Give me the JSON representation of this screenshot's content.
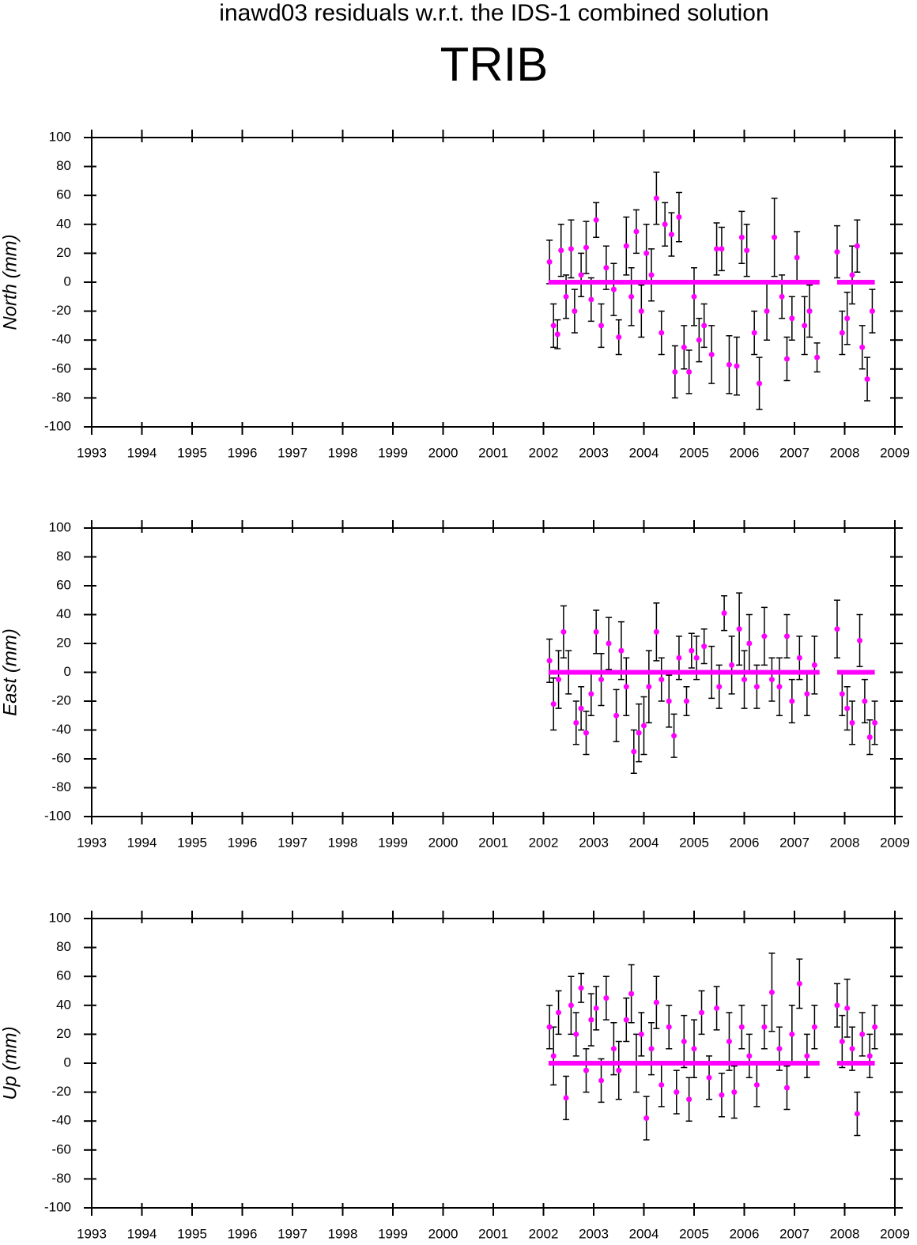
{
  "title": "inawd03 residuals w.r.t. the IDS-1 combined solution",
  "station": "TRIB",
  "chart_data": [
    {
      "type": "scatter",
      "y_label": "North (mm)",
      "color": "#ff00ff",
      "error_color": "#000000",
      "x": [
        2002.12,
        2002.2,
        2002.28,
        2002.35,
        2002.45,
        2002.55,
        2002.62,
        2002.75,
        2002.85,
        2002.95,
        2003.05,
        2003.15,
        2003.25,
        2003.4,
        2003.5,
        2003.65,
        2003.75,
        2003.85,
        2003.95,
        2004.05,
        2004.15,
        2004.25,
        2004.35,
        2004.42,
        2004.55,
        2004.62,
        2004.7,
        2004.8,
        2004.9,
        2005.0,
        2005.1,
        2005.2,
        2005.35,
        2005.45,
        2005.55,
        2005.7,
        2005.85,
        2005.95,
        2006.05,
        2006.2,
        2006.3,
        2006.45,
        2006.6,
        2006.75,
        2006.85,
        2006.95,
        2007.05,
        2007.2,
        2007.3,
        2007.45,
        2007.85,
        2007.95,
        2008.05,
        2008.15,
        2008.25,
        2008.35,
        2008.45,
        2008.55
      ],
      "values": [
        14,
        -30,
        -36,
        22,
        -10,
        23,
        -20,
        5,
        24,
        -12,
        43,
        -30,
        10,
        -5,
        -38,
        25,
        -10,
        35,
        -20,
        20,
        5,
        58,
        -35,
        40,
        33,
        -62,
        45,
        -45,
        -62,
        -10,
        -40,
        -30,
        -50,
        23,
        23,
        -57,
        -58,
        31,
        22,
        -35,
        -70,
        -20,
        31,
        -10,
        -53,
        -25,
        17,
        -30,
        -20,
        -52,
        21,
        -35,
        -25,
        5,
        25,
        -45,
        -67,
        -20
      ],
      "errors": [
        15,
        15,
        10,
        18,
        15,
        20,
        15,
        15,
        18,
        15,
        12,
        15,
        15,
        18,
        12,
        20,
        20,
        15,
        18,
        20,
        18,
        18,
        15,
        15,
        15,
        18,
        17,
        15,
        15,
        20,
        15,
        15,
        20,
        18,
        15,
        20,
        20,
        18,
        18,
        15,
        18,
        20,
        27,
        15,
        15,
        15,
        18,
        20,
        18,
        10,
        18,
        15,
        18,
        20,
        18,
        15,
        15,
        15
      ],
      "fit": {
        "x": [
          2002.1,
          2007.5,
          2007.6,
          2007.85,
          2008.6
        ],
        "values": [
          0,
          0,
          null,
          0,
          0
        ]
      },
      "xlim": [
        1993,
        2009
      ],
      "xticks": [
        1993,
        1994,
        1995,
        1996,
        1997,
        1998,
        1999,
        2000,
        2001,
        2002,
        2003,
        2004,
        2005,
        2006,
        2007,
        2008,
        2009
      ],
      "ylim": [
        -100,
        100
      ],
      "yticks": [
        -100,
        -80,
        -60,
        -40,
        -20,
        0,
        20,
        40,
        60,
        80,
        100
      ]
    },
    {
      "type": "scatter",
      "y_label": "East (mm)",
      "color": "#ff00ff",
      "error_color": "#000000",
      "x": [
        2002.12,
        2002.2,
        2002.3,
        2002.4,
        2002.5,
        2002.65,
        2002.75,
        2002.85,
        2002.95,
        2003.05,
        2003.15,
        2003.3,
        2003.45,
        2003.55,
        2003.65,
        2003.8,
        2003.9,
        2004.0,
        2004.1,
        2004.25,
        2004.35,
        2004.5,
        2004.6,
        2004.7,
        2004.85,
        2004.95,
        2005.05,
        2005.2,
        2005.35,
        2005.5,
        2005.6,
        2005.75,
        2005.9,
        2006.0,
        2006.1,
        2006.25,
        2006.4,
        2006.55,
        2006.7,
        2006.85,
        2006.95,
        2007.1,
        2007.25,
        2007.4,
        2007.85,
        2007.95,
        2008.05,
        2008.15,
        2008.3,
        2008.4,
        2008.5,
        2008.6
      ],
      "values": [
        8,
        -22,
        -5,
        28,
        0,
        -35,
        -25,
        -42,
        -15,
        28,
        -5,
        20,
        -30,
        15,
        -10,
        -55,
        -42,
        -37,
        -10,
        28,
        -5,
        -20,
        -44,
        10,
        -20,
        15,
        10,
        18,
        0,
        -10,
        41,
        5,
        30,
        -5,
        20,
        -10,
        25,
        -5,
        -10,
        25,
        -20,
        10,
        -15,
        5,
        30,
        -15,
        -25,
        -35,
        22,
        -20,
        -45,
        -35
      ],
      "errors": [
        15,
        18,
        20,
        18,
        15,
        15,
        15,
        15,
        15,
        15,
        18,
        18,
        18,
        20,
        20,
        15,
        20,
        20,
        25,
        20,
        15,
        18,
        15,
        15,
        10,
        12,
        15,
        12,
        18,
        15,
        12,
        20,
        25,
        20,
        20,
        15,
        20,
        15,
        20,
        15,
        15,
        15,
        15,
        20,
        20,
        15,
        15,
        15,
        18,
        15,
        12,
        15
      ],
      "fit": {
        "x": [
          2002.1,
          2007.5,
          2007.6,
          2007.85,
          2008.6
        ],
        "values": [
          0,
          0,
          null,
          0,
          0
        ]
      },
      "xlim": [
        1993,
        2009
      ],
      "xticks": [
        1993,
        1994,
        1995,
        1996,
        1997,
        1998,
        1999,
        2000,
        2001,
        2002,
        2003,
        2004,
        2005,
        2006,
        2007,
        2008,
        2009
      ],
      "ylim": [
        -100,
        100
      ],
      "yticks": [
        -100,
        -80,
        -60,
        -40,
        -20,
        0,
        20,
        40,
        60,
        80,
        100
      ]
    },
    {
      "type": "scatter",
      "y_label": "Up (mm)",
      "color": "#ff00ff",
      "error_color": "#000000",
      "x": [
        2002.12,
        2002.2,
        2002.3,
        2002.45,
        2002.55,
        2002.65,
        2002.75,
        2002.85,
        2002.95,
        2003.05,
        2003.15,
        2003.25,
        2003.4,
        2003.5,
        2003.65,
        2003.75,
        2003.85,
        2003.95,
        2004.05,
        2004.15,
        2004.25,
        2004.35,
        2004.5,
        2004.65,
        2004.8,
        2004.9,
        2005.0,
        2005.15,
        2005.3,
        2005.45,
        2005.55,
        2005.7,
        2005.8,
        2005.95,
        2006.1,
        2006.25,
        2006.4,
        2006.55,
        2006.7,
        2006.85,
        2006.95,
        2007.1,
        2007.25,
        2007.4,
        2007.85,
        2007.95,
        2008.05,
        2008.15,
        2008.25,
        2008.35,
        2008.5,
        2008.6
      ],
      "values": [
        25,
        5,
        35,
        -24,
        40,
        20,
        52,
        -5,
        30,
        38,
        -12,
        45,
        10,
        -5,
        30,
        48,
        0,
        20,
        -38,
        10,
        42,
        -15,
        25,
        -20,
        15,
        -25,
        10,
        35,
        -10,
        38,
        -22,
        15,
        -20,
        25,
        5,
        -15,
        25,
        49,
        10,
        -17,
        20,
        55,
        5,
        25,
        40,
        15,
        38,
        10,
        -35,
        20,
        5,
        25
      ],
      "errors": [
        15,
        20,
        15,
        15,
        20,
        15,
        10,
        15,
        18,
        15,
        15,
        15,
        18,
        20,
        15,
        20,
        20,
        15,
        15,
        18,
        18,
        15,
        15,
        15,
        18,
        15,
        20,
        15,
        15,
        15,
        15,
        20,
        18,
        15,
        15,
        15,
        15,
        27,
        15,
        15,
        20,
        17,
        15,
        15,
        15,
        18,
        20,
        15,
        15,
        15,
        15,
        15
      ],
      "fit": {
        "x": [
          2002.1,
          2007.5,
          2007.6,
          2007.85,
          2008.6
        ],
        "values": [
          0,
          0,
          null,
          0,
          0
        ]
      },
      "xlim": [
        1993,
        2009
      ],
      "xticks": [
        1993,
        1994,
        1995,
        1996,
        1997,
        1998,
        1999,
        2000,
        2001,
        2002,
        2003,
        2004,
        2005,
        2006,
        2007,
        2008,
        2009
      ],
      "ylim": [
        -100,
        100
      ],
      "yticks": [
        -100,
        -80,
        -60,
        -40,
        -20,
        0,
        20,
        40,
        60,
        80,
        100
      ]
    }
  ]
}
